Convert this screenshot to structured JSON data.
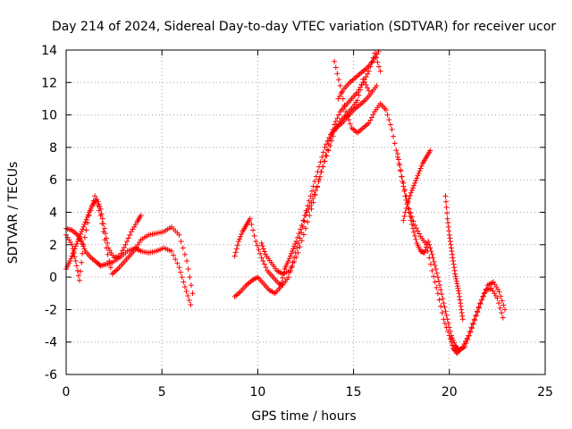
{
  "chart_data": {
    "type": "scatter",
    "title": "Day 214 of 2024, Sidereal Day-to-day VTEC variation (SDTVAR) for receiver ucor",
    "xlabel": "GPS time / hours",
    "ylabel": "SDTVAR / TECUs",
    "xlim": [
      0,
      25
    ],
    "ylim": [
      -6,
      14
    ],
    "xticks": [
      "0",
      "5",
      "10",
      "15",
      "20",
      "25"
    ],
    "yticks": [
      "-6",
      "-4",
      "-2",
      "0",
      "2",
      "4",
      "6",
      "8",
      "10",
      "12",
      "14"
    ],
    "grid": true,
    "marker": "plus",
    "color": "#ff0000",
    "tracks": [
      {
        "x": [
          0.0,
          0.3,
          0.6,
          0.8,
          1.0,
          1.3,
          1.6,
          1.8,
          2.1,
          2.4,
          2.8,
          3.2,
          3.6,
          3.9,
          4.3,
          4.7,
          5.1,
          5.5,
          5.9,
          6.2,
          6.5
        ],
        "y": [
          3.0,
          2.9,
          2.6,
          2.2,
          1.6,
          1.2,
          0.9,
          0.7,
          0.8,
          0.9,
          1.2,
          1.6,
          1.8,
          1.6,
          1.5,
          1.6,
          1.8,
          1.6,
          0.6,
          -0.6,
          -1.7
        ]
      },
      {
        "x": [
          0.0,
          0.2,
          0.4,
          0.6,
          0.8,
          1.0,
          1.2,
          1.4,
          1.6,
          1.8,
          2.0,
          2.2,
          2.5,
          2.8,
          3.1,
          3.4,
          3.7,
          3.9
        ],
        "y": [
          0.5,
          1.0,
          1.6,
          2.2,
          2.8,
          3.4,
          4.0,
          4.5,
          4.8,
          4.2,
          3.0,
          1.8,
          1.2,
          1.3,
          2.0,
          2.8,
          3.4,
          3.8
        ]
      },
      {
        "x": [
          0.0,
          0.3,
          0.5,
          0.7,
          0.9,
          1.2,
          1.5,
          1.8,
          2.1,
          2.4,
          2.7,
          3.0,
          3.3,
          3.6,
          3.9,
          4.3,
          4.7,
          5.1,
          5.5,
          5.9,
          6.3,
          6.6
        ],
        "y": [
          2.6,
          2.0,
          1.0,
          -0.2,
          2.0,
          3.8,
          5.0,
          3.8,
          1.8,
          0.2,
          0.5,
          0.9,
          1.3,
          1.7,
          2.3,
          2.6,
          2.7,
          2.8,
          3.1,
          2.6,
          1.0,
          -1.0
        ]
      },
      {
        "x": [
          8.8,
          9.1,
          9.4,
          9.7,
          10.0,
          10.3,
          10.6,
          10.9,
          11.2,
          11.4,
          11.6,
          11.8,
          12.0,
          12.3,
          12.6,
          12.9,
          13.2,
          13.5,
          13.8,
          14.1,
          14.4,
          14.7,
          15.0,
          15.3,
          15.6,
          15.9,
          16.2
        ],
        "y": [
          -1.2,
          -0.9,
          -0.5,
          -0.2,
          0.0,
          -0.4,
          -0.8,
          -1.0,
          -0.6,
          0.5,
          1.0,
          1.6,
          2.2,
          3.2,
          4.4,
          5.6,
          6.8,
          8.0,
          8.8,
          9.2,
          9.5,
          9.9,
          10.3,
          10.6,
          10.9,
          11.3,
          11.8
        ]
      },
      {
        "x": [
          8.8,
          9.0,
          9.2,
          9.4,
          9.6,
          9.9,
          10.2,
          10.5,
          10.8,
          11.1,
          11.3,
          11.6,
          11.9,
          12.2,
          12.5,
          12.8,
          13.1,
          13.4,
          13.7,
          14.0,
          14.3,
          14.6,
          14.9,
          15.2,
          15.5,
          15.8,
          16.1,
          16.4
        ],
        "y": [
          1.3,
          2.2,
          2.8,
          3.2,
          3.6,
          2.2,
          1.2,
          0.4,
          0.0,
          -0.4,
          -0.5,
          0.0,
          1.2,
          2.4,
          3.8,
          4.6,
          5.6,
          6.8,
          8.2,
          9.4,
          10.2,
          10.6,
          11.0,
          11.4,
          12.0,
          12.7,
          13.8,
          12.7
        ]
      },
      {
        "x": [
          10.2,
          10.4,
          10.7,
          11.0,
          11.3,
          11.7,
          12.1,
          12.5,
          12.9,
          13.3,
          13.7,
          14.0,
          14.3,
          14.6,
          14.9,
          15.2,
          15.5,
          15.8
        ],
        "y": [
          2.1,
          1.4,
          0.9,
          0.4,
          0.2,
          0.4,
          1.5,
          3.0,
          4.6,
          6.5,
          7.8,
          9.0,
          9.6,
          10.0,
          10.4,
          10.9,
          12.2,
          11.5
        ]
      },
      {
        "x": [
          14.0,
          14.3,
          14.6,
          14.9,
          15.2,
          15.5,
          15.8,
          16.1,
          16.4,
          16.7,
          17.0,
          17.3,
          17.6,
          17.9,
          18.2,
          18.5,
          18.8,
          19.1,
          19.4,
          19.7,
          20.0,
          20.2,
          20.4,
          20.7,
          21.0,
          21.3,
          21.6,
          21.9,
          22.2,
          22.5,
          22.8
        ],
        "y": [
          13.3,
          11.8,
          10.2,
          9.2,
          8.9,
          9.2,
          9.5,
          10.2,
          10.7,
          10.3,
          9.1,
          7.4,
          5.8,
          4.2,
          3.2,
          2.5,
          2.0,
          0.4,
          -1.0,
          -2.6,
          -3.6,
          -4.4,
          -4.7,
          -4.3,
          -3.6,
          -2.6,
          -1.6,
          -0.8,
          -0.7,
          -1.3,
          -2.5
        ]
      },
      {
        "x": [
          17.3,
          17.5,
          17.7,
          17.9,
          18.1,
          18.3,
          18.5,
          18.7,
          18.9,
          19.1,
          19.3,
          19.5,
          19.7,
          19.9,
          20.1,
          20.3,
          20.5,
          20.8,
          21.1,
          21.4,
          21.7,
          22.0,
          22.3,
          22.6,
          22.9
        ],
        "y": [
          7.6,
          6.2,
          5.0,
          4.0,
          3.0,
          2.1,
          1.6,
          1.5,
          2.2,
          1.4,
          0.5,
          -0.5,
          -1.6,
          -2.6,
          -3.6,
          -4.2,
          -4.5,
          -4.3,
          -3.4,
          -2.4,
          -1.4,
          -0.5,
          -0.3,
          -0.9,
          -2.0
        ]
      },
      {
        "x": [
          17.6,
          17.8,
          18.0,
          18.2,
          18.4,
          18.6,
          18.8,
          19.0
        ],
        "y": [
          3.5,
          4.5,
          5.2,
          5.8,
          6.4,
          7.0,
          7.4,
          7.8
        ]
      },
      {
        "x": [
          19.8,
          19.9,
          20.0,
          20.1,
          20.2,
          20.3,
          20.4,
          20.5,
          20.6,
          20.7
        ],
        "y": [
          5.0,
          3.6,
          2.6,
          1.8,
          1.0,
          0.2,
          -0.4,
          -1.0,
          -1.8,
          -2.6
        ]
      },
      {
        "x": [
          14.2,
          14.5,
          14.8,
          15.1,
          15.4,
          15.7,
          16.0,
          16.3
        ],
        "y": [
          11.0,
          11.6,
          12.0,
          12.3,
          12.6,
          12.9,
          13.3,
          13.9
        ]
      }
    ]
  }
}
